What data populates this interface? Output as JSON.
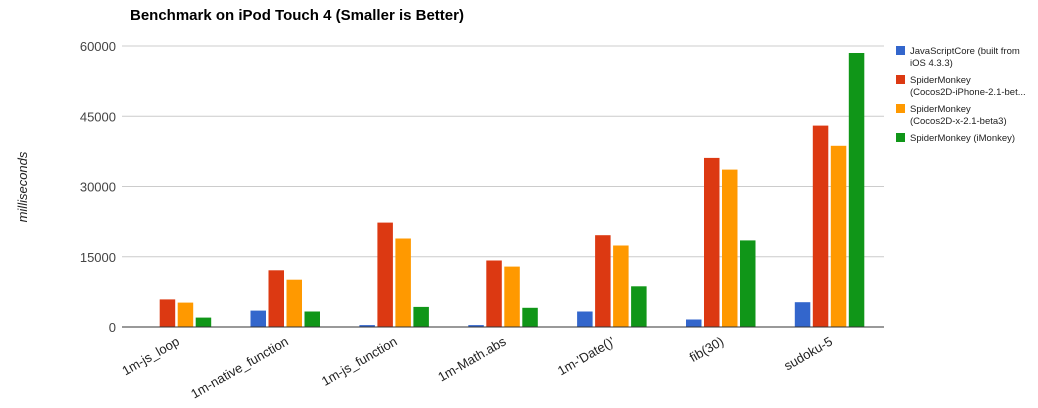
{
  "chart_data": {
    "type": "bar",
    "title": "Benchmark on iPod Touch 4 (Smaller is Better)",
    "xlabel": "",
    "ylabel": "milliseconds",
    "ylim": [
      0,
      60000
    ],
    "yticks": [
      "0",
      "15000",
      "30000",
      "45000",
      "60000"
    ],
    "ytick_values": [
      0,
      15000,
      30000,
      45000,
      60000
    ],
    "grid": true,
    "legend_position": "right",
    "categories": [
      "1m-js_loop",
      "1m-native_function",
      "1m-js_function",
      "1m-Math.abs",
      "1m-'Date()'",
      "fib(30)",
      "sudoku-5"
    ],
    "series": [
      {
        "name": "JavaScriptCore (built from iOS 4.3.3)",
        "legend_lines": [
          "JavaScriptCore (built from",
          "iOS 4.3.3)"
        ],
        "color": "#3366cc",
        "values": [
          0,
          3500,
          400,
          400,
          3300,
          1600,
          5300
        ]
      },
      {
        "name": "SpiderMonkey (Cocos2D-iPhone-2.1-bet...",
        "legend_lines": [
          "SpiderMonkey",
          "(Cocos2D-iPhone-2.1-bet..."
        ],
        "color": "#dc3912",
        "values": [
          5900,
          12100,
          22300,
          14200,
          19600,
          36100,
          43000
        ]
      },
      {
        "name": "SpiderMonkey (Cocos2D-x-2.1-beta3)",
        "legend_lines": [
          "SpiderMonkey",
          "(Cocos2D-x-2.1-beta3)"
        ],
        "color": "#ff9900",
        "values": [
          5200,
          10100,
          18900,
          12900,
          17400,
          33600,
          38700
        ]
      },
      {
        "name": "SpiderMonkey (iMonkey)",
        "legend_lines": [
          "SpiderMonkey (iMonkey)"
        ],
        "color": "#109618",
        "values": [
          2000,
          3300,
          4300,
          4100,
          8700,
          18500,
          58500
        ]
      }
    ]
  }
}
